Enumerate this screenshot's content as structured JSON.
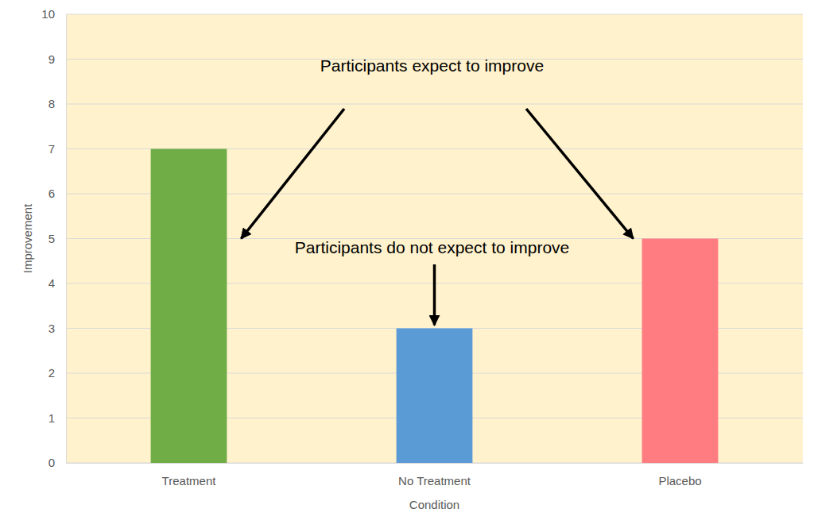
{
  "chart_data": {
    "type": "bar",
    "categories": [
      "Treatment",
      "No Treatment",
      "Placebo"
    ],
    "values": [
      7,
      3,
      5
    ],
    "colors": [
      "#70ad47",
      "#5b9bd5",
      "#ff7c80"
    ],
    "ylim": [
      0,
      10
    ],
    "yticks": [
      0,
      1,
      2,
      3,
      4,
      5,
      6,
      7,
      8,
      9,
      10
    ],
    "grid": true,
    "x_label": "Condition",
    "y_label": "Improvement",
    "annotations": [
      "Participants expect to improve",
      "Participants do not expect to improve"
    ]
  }
}
